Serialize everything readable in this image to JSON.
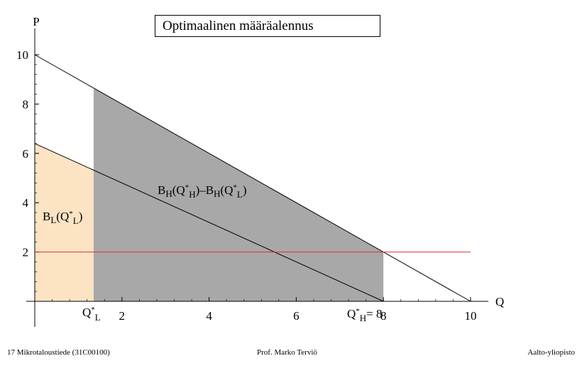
{
  "chart_data": {
    "type": "area",
    "title": "Optimaalinen määräalennus",
    "xlabel": "Q",
    "ylabel": "P",
    "xlim": [
      0,
      10
    ],
    "ylim": [
      0,
      10
    ],
    "x_ticks": [
      2,
      4,
      6,
      8,
      10
    ],
    "y_ticks": [
      2,
      4,
      6,
      8,
      10
    ],
    "x_tick_labels": [
      "2",
      "4",
      "6",
      "8",
      "10"
    ],
    "y_tick_labels": [
      "2",
      "4",
      "6",
      "8",
      "10"
    ],
    "grid": false,
    "series": [
      {
        "points": [
          [
            0,
            10
          ],
          [
            10,
            0
          ]
        ],
        "color": "#000000"
      },
      {
        "points": [
          [
            0,
            6.4
          ],
          [
            8,
            0
          ]
        ],
        "color": "#000000"
      },
      {
        "points": [
          [
            0,
            2
          ],
          [
            10,
            2
          ]
        ],
        "color": "#e03030"
      }
    ],
    "regions": [
      {
        "label": "B_L(Q*_L)",
        "color": "#fbe3c3",
        "polygon": [
          [
            0,
            0
          ],
          [
            0,
            6.4
          ],
          [
            1.35,
            5.32
          ],
          [
            1.35,
            0
          ]
        ]
      },
      {
        "label": "B_H(Q*_H)−B_H(Q*_L)",
        "color": "#a8a8a8",
        "polygon": [
          [
            1.35,
            0
          ],
          [
            1.35,
            8.65
          ],
          [
            8,
            2
          ],
          [
            8,
            0
          ]
        ]
      }
    ],
    "annotations": {
      "qstar_l": "Q*L",
      "qstar_h": "Q*H= 8",
      "region_l": "BL(Q*L)",
      "region_h": "BH(Q*H)–BH(Q*L)"
    }
  },
  "footer": {
    "left": "17 Mikrotaloustiede (31C00100)",
    "center": "Prof. Marko Terviö",
    "right": "Aalto-yliopisto"
  },
  "colors": {
    "gray_region": "#a8a8a8",
    "peach_region": "#fbe3c3",
    "red_line": "#e03030"
  }
}
